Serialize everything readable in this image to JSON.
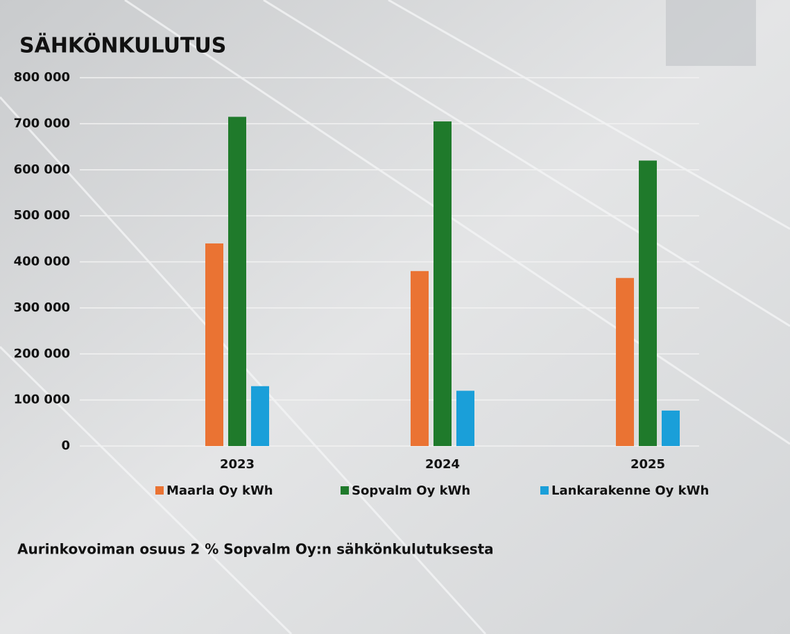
{
  "chart_data": {
    "type": "bar",
    "title": "SÄHKÖNKULUTUS",
    "categories": [
      "2023",
      "2024",
      "2025"
    ],
    "series": [
      {
        "name": "Maarla Oy kWh",
        "color": "#ea7333",
        "values": [
          440000,
          380000,
          365000
        ]
      },
      {
        "name": "Sopvalm Oy kWh",
        "color": "#1f7a2b",
        "values": [
          715000,
          705000,
          620000
        ]
      },
      {
        "name": "Lankarakenne Oy kWh",
        "color": "#1a9fd9",
        "values": [
          130000,
          120000,
          77000
        ]
      }
    ],
    "ylim": [
      0,
      800000
    ],
    "yticks": [
      {
        "value": 0,
        "label": "0"
      },
      {
        "value": 100000,
        "label": "100 000"
      },
      {
        "value": 200000,
        "label": "200 000"
      },
      {
        "value": 300000,
        "label": "300 000"
      },
      {
        "value": 400000,
        "label": "400 000"
      },
      {
        "value": 500000,
        "label": "500 000"
      },
      {
        "value": 600000,
        "label": "600 000"
      },
      {
        "value": 700000,
        "label": "700 000"
      },
      {
        "value": 800000,
        "label": "800 000"
      }
    ],
    "grid": true,
    "annotation": "Aurinkovoiman osuus 2 % Sopvalm Oy:n sähkönkulutuksesta"
  }
}
